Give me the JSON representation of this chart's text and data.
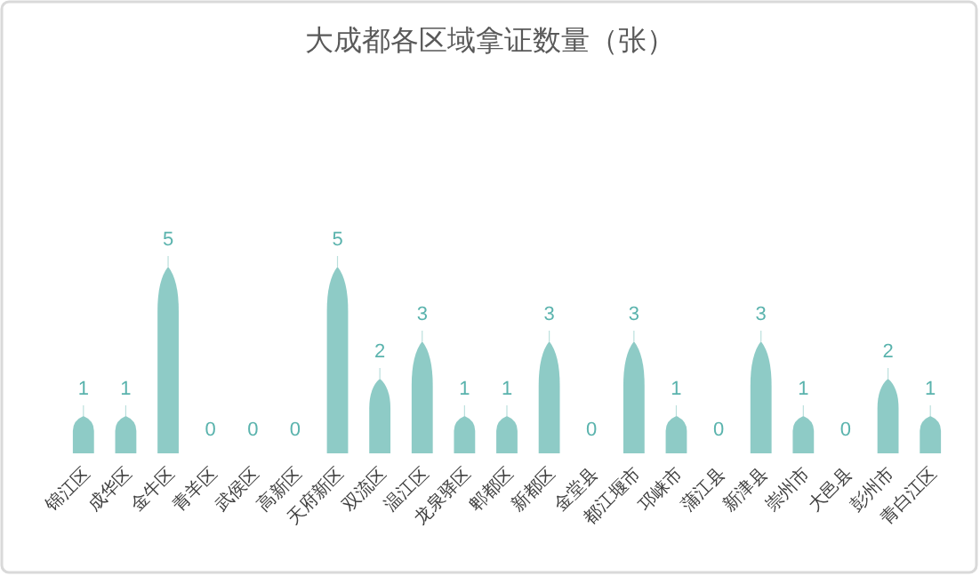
{
  "chart_data": {
    "type": "bar",
    "title": "大成都各区域拿证数量（张）",
    "categories": [
      "锦江区",
      "成华区",
      "金牛区",
      "青羊区",
      "武侯区",
      "高新区",
      "天府新区",
      "双流区",
      "温江区",
      "龙泉驿区",
      "郫都区",
      "新都区",
      "金堂县",
      "都江堰市",
      "邛崃市",
      "蒲江县",
      "新津县",
      "崇州市",
      "大邑县",
      "彭州市",
      "青白江区"
    ],
    "values": [
      1,
      1,
      5,
      0,
      0,
      0,
      5,
      2,
      3,
      1,
      1,
      3,
      0,
      3,
      1,
      0,
      3,
      1,
      0,
      2,
      1
    ],
    "color": "#8ecbc6",
    "data_labels": true
  }
}
